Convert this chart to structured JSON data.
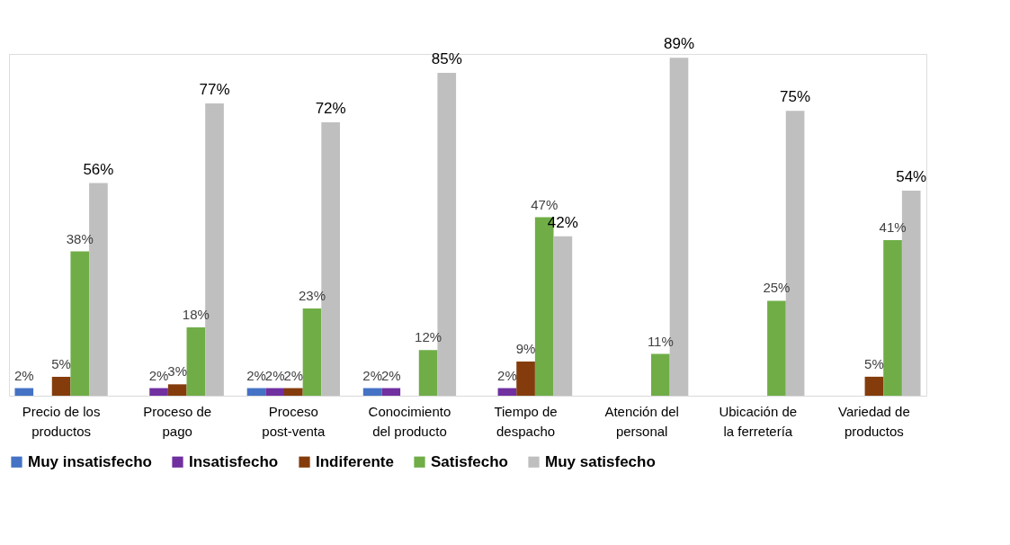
{
  "chart_data": {
    "type": "bar",
    "categories": [
      "Precio de los productos",
      "Proceso de pago",
      "Proceso post-venta",
      "Conocimiento del producto",
      "Tiempo de despacho",
      "Atención del personal",
      "Ubicación de la ferretería",
      "Variedad de productos"
    ],
    "series": [
      {
        "name": "Muy insatisfecho",
        "color": "#4472c4",
        "values": [
          2,
          null,
          2,
          2,
          null,
          null,
          null,
          null
        ],
        "value_labels": [
          "2%",
          null,
          "2%",
          "2%",
          null,
          null,
          null,
          null
        ]
      },
      {
        "name": "Insatisfecho",
        "color": "#7030a0",
        "values": [
          null,
          2,
          2,
          2,
          2,
          null,
          null,
          null
        ],
        "value_labels": [
          null,
          "2%",
          "2%",
          "2%",
          "2%",
          null,
          null,
          null
        ]
      },
      {
        "name": "Indiferente",
        "color": "#843c0c",
        "values": [
          5,
          3,
          2,
          null,
          9,
          null,
          null,
          5
        ],
        "value_labels": [
          "5%",
          "3%",
          "2%",
          null,
          "9%",
          null,
          null,
          "5%"
        ]
      },
      {
        "name": "Satisfecho",
        "color": "#70ad47",
        "values": [
          38,
          18,
          23,
          12,
          47,
          11,
          25,
          41
        ],
        "value_labels": [
          "38%",
          "18%",
          "23%",
          "12%",
          "47%",
          "11%",
          "25%",
          "41%"
        ]
      },
      {
        "name": "Muy satisfecho",
        "color": "#bfbfbf",
        "values": [
          56,
          77,
          72,
          85,
          42,
          89,
          75,
          54
        ],
        "value_labels": [
          "56%",
          "77%",
          "72%",
          "85%",
          "42%",
          "89%",
          "75%",
          "54%"
        ]
      }
    ],
    "legend": "bottom",
    "grid": false
  }
}
